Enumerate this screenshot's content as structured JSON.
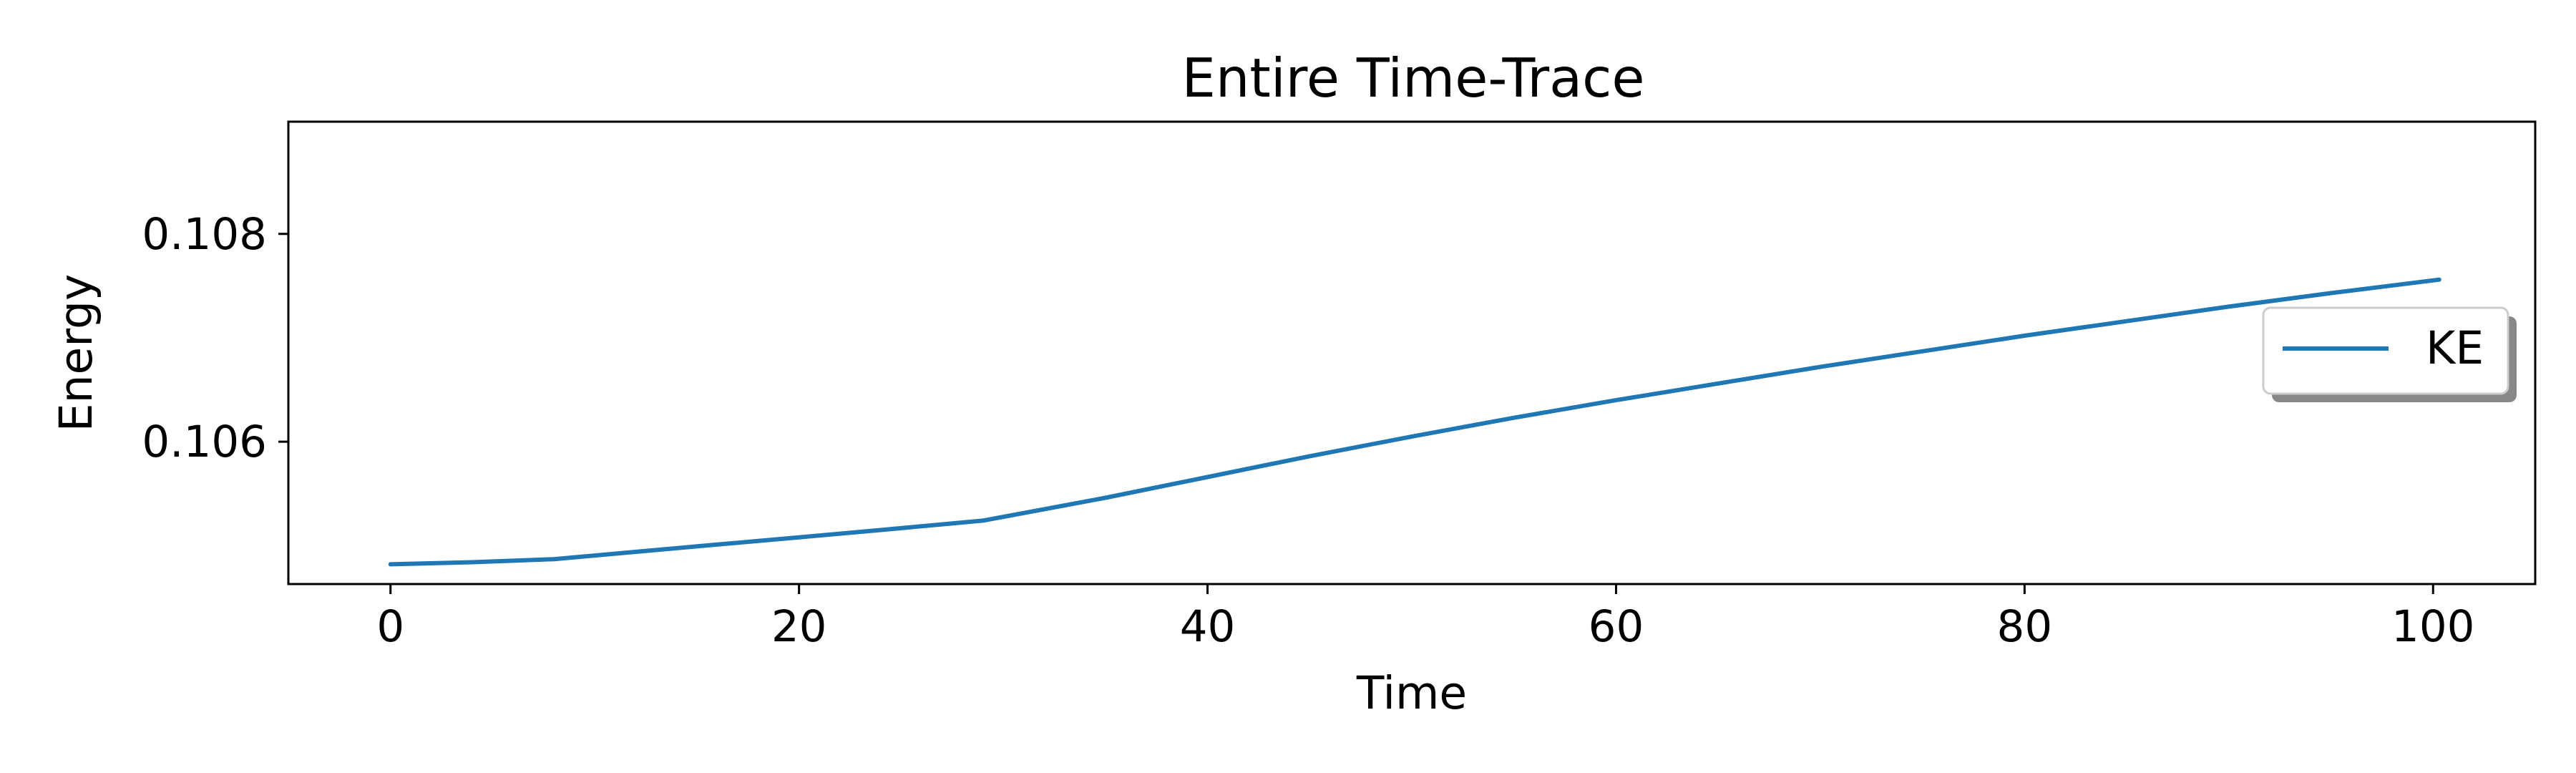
{
  "chart_data": {
    "type": "line",
    "title": "Entire Time-Trace",
    "xlabel": "Time",
    "ylabel": "Energy",
    "xlim": [
      -5,
      105
    ],
    "ylim": [
      0.10463,
      0.10908
    ],
    "xticks": [
      0,
      20,
      40,
      60,
      80,
      100
    ],
    "xtick_labels": [
      "0",
      "20",
      "40",
      "60",
      "80",
      "100"
    ],
    "yticks": [
      0.106,
      0.108
    ],
    "ytick_labels": [
      "0.106",
      "0.108"
    ],
    "grid": false,
    "legend": {
      "position": "right",
      "entries": [
        "KE"
      ]
    },
    "series": [
      {
        "name": "KE",
        "color": "#1f77b4",
        "x": [
          0,
          4,
          8,
          12,
          16,
          20,
          24,
          29,
          35,
          40,
          45,
          50,
          55,
          60,
          65,
          70,
          75,
          80,
          85,
          90,
          95,
          100.3
        ],
        "y": [
          0.10482,
          0.10484,
          0.10487,
          0.10494,
          0.10501,
          0.10508,
          0.10515,
          0.10524,
          0.10546,
          0.10566,
          0.10586,
          0.10605,
          0.10623,
          0.1064,
          0.10656,
          0.10672,
          0.10687,
          0.10702,
          0.10716,
          0.1073,
          0.10743,
          0.10756
        ]
      }
    ]
  }
}
